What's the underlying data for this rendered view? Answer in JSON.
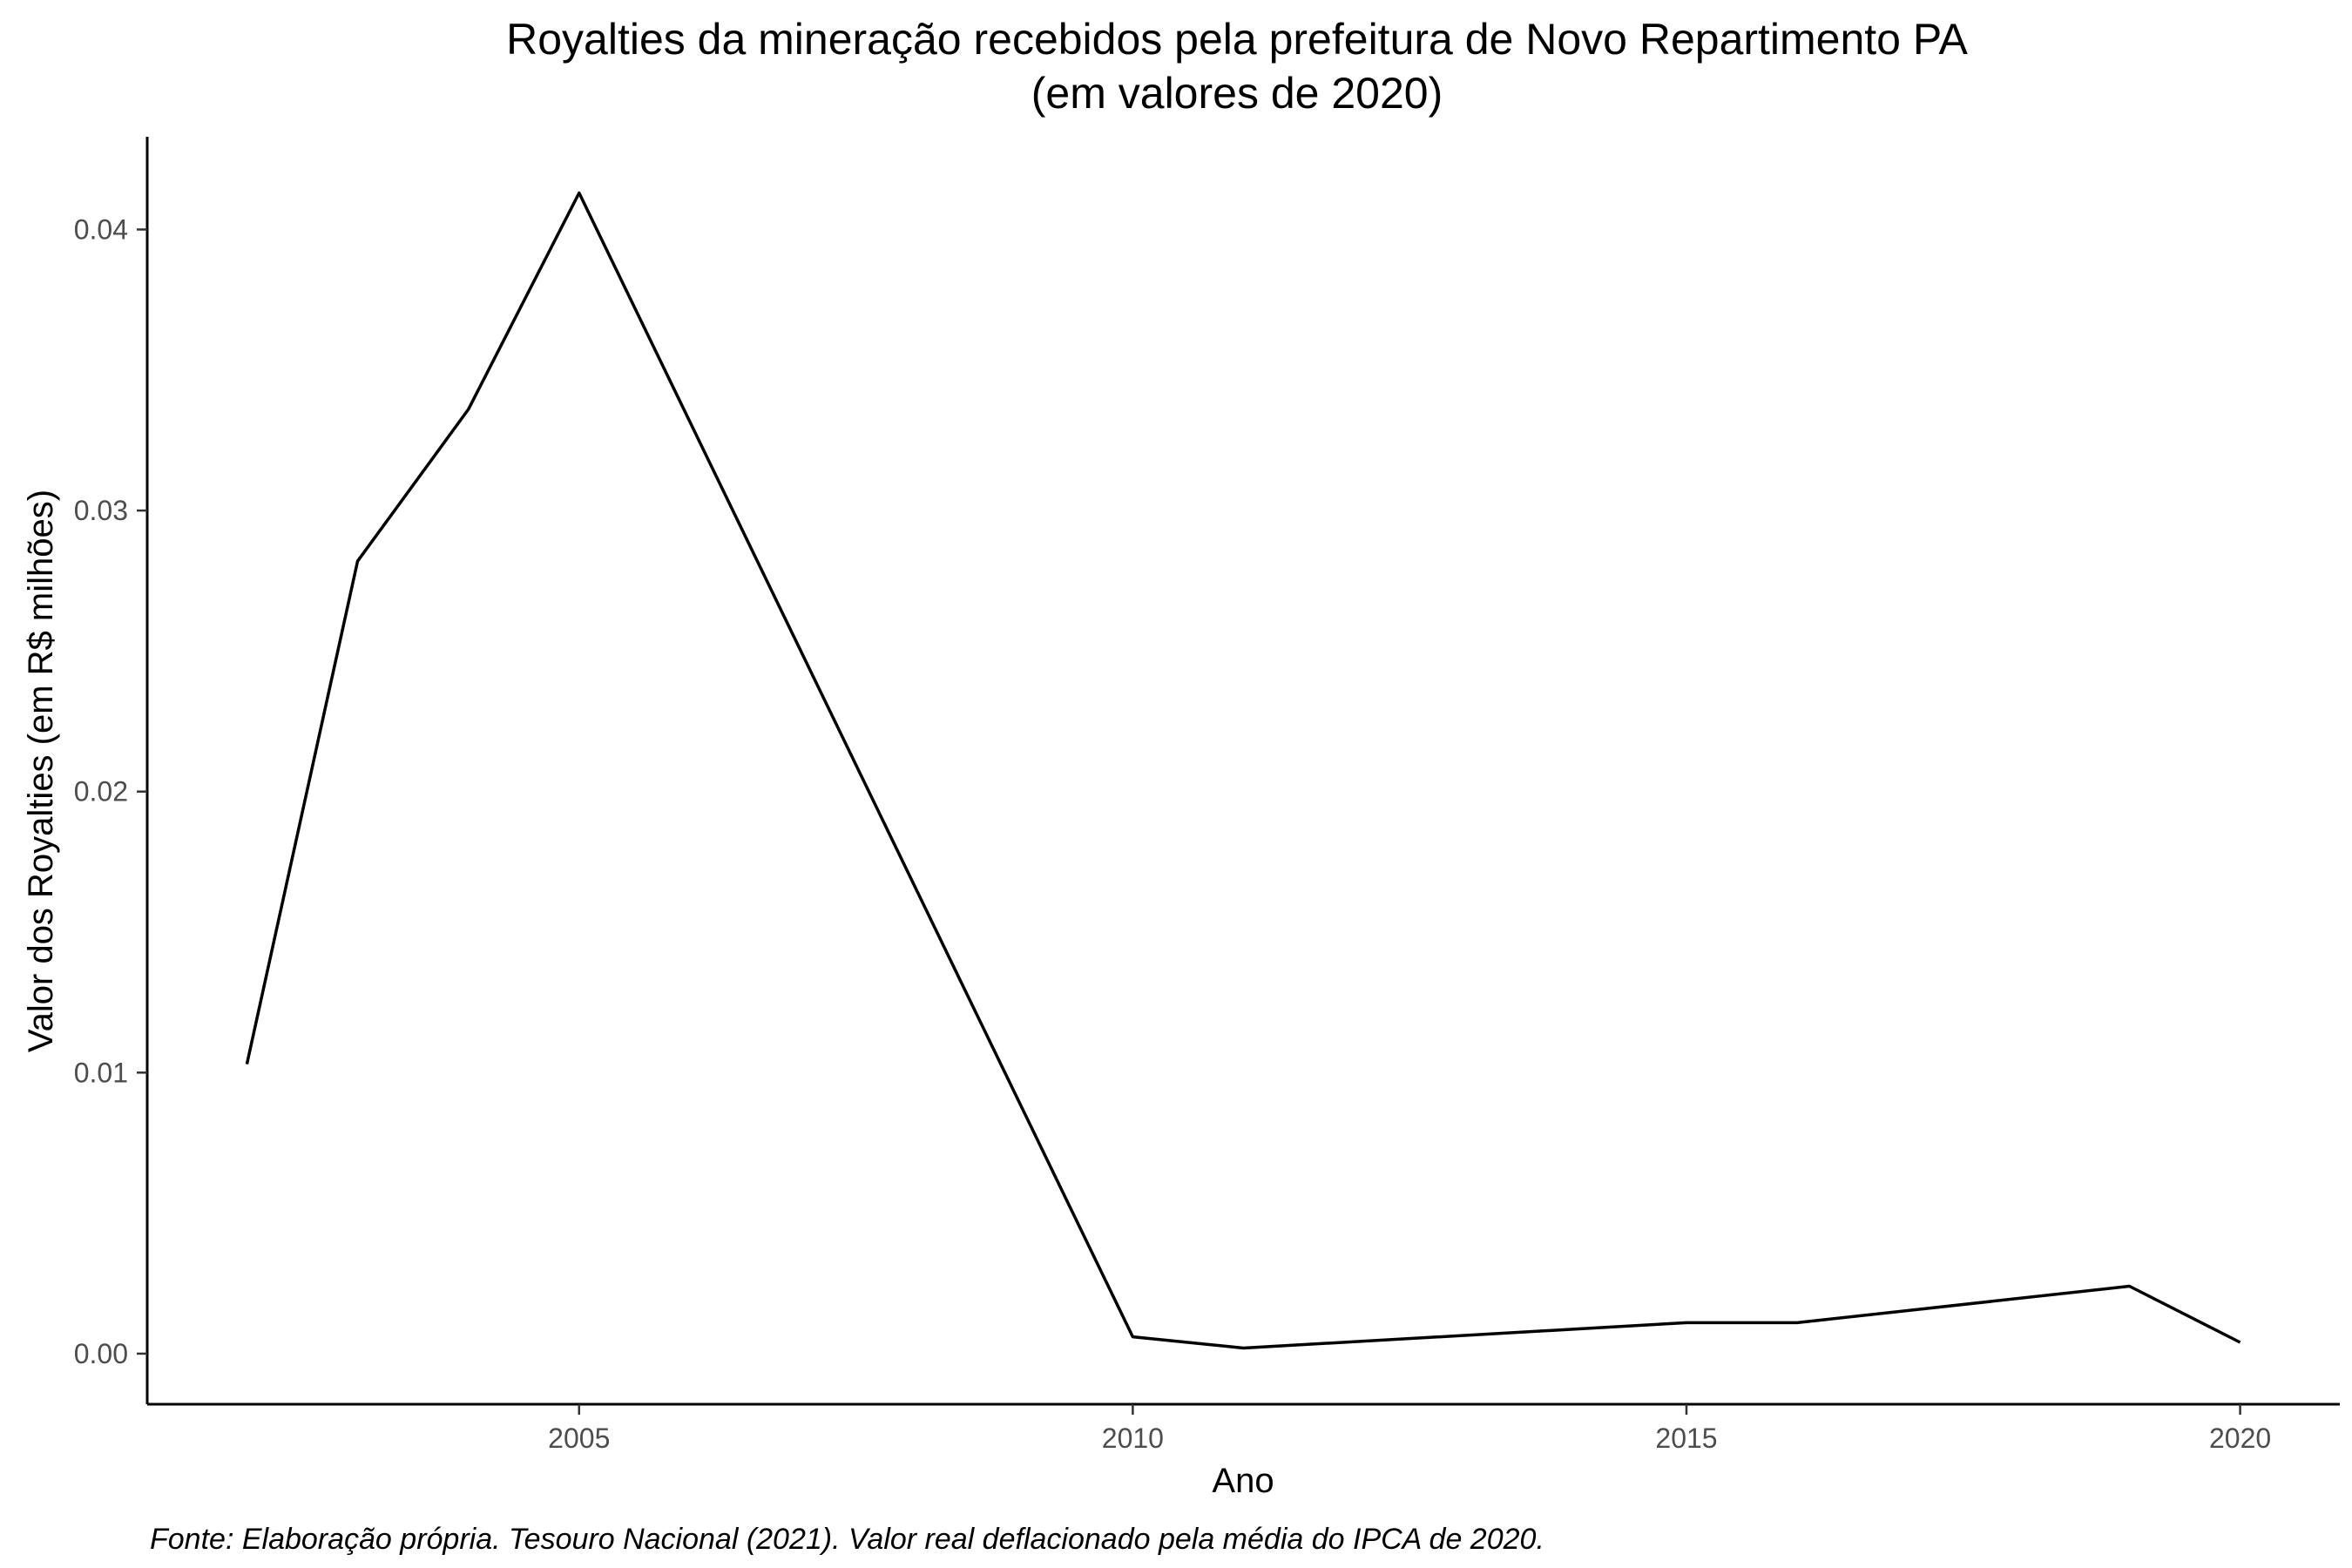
{
  "chart_data": {
    "type": "line",
    "title": "Royalties da mineração recebidos pela prefeitura de Novo Repartimento PA",
    "subtitle": "(em valores de 2020)",
    "xlabel": "Ano",
    "ylabel": "Valor dos Royalties (em R$ milhões)",
    "caption": "Fonte: Elaboração própria. Tesouro Nacional (2021). Valor real deflacionado pela média do IPCA de 2020.",
    "x_ticks": [
      2005,
      2010,
      2015,
      2020
    ],
    "x_tick_labels": [
      "2005",
      "2010",
      "2015",
      "2020"
    ],
    "y_ticks": [
      0,
      0.01,
      0.02,
      0.03,
      0.04
    ],
    "y_tick_labels": [
      "0.00",
      "0.01",
      "0.02",
      "0.03",
      "0.04"
    ],
    "xlim": [
      2001.1,
      2020.9
    ],
    "ylim": [
      -0.0018,
      0.0433
    ],
    "grid": false,
    "line_color": "#000000",
    "series": [
      {
        "x": [
          2002,
          2003,
          2004,
          2005,
          2010,
          2011,
          2015,
          2016,
          2019,
          2020
        ],
        "y": [
          0.0103,
          0.0282,
          0.0336,
          0.0413,
          0.0006,
          0.0002,
          0.0011,
          0.0011,
          0.0024,
          0.0004
        ]
      }
    ]
  }
}
